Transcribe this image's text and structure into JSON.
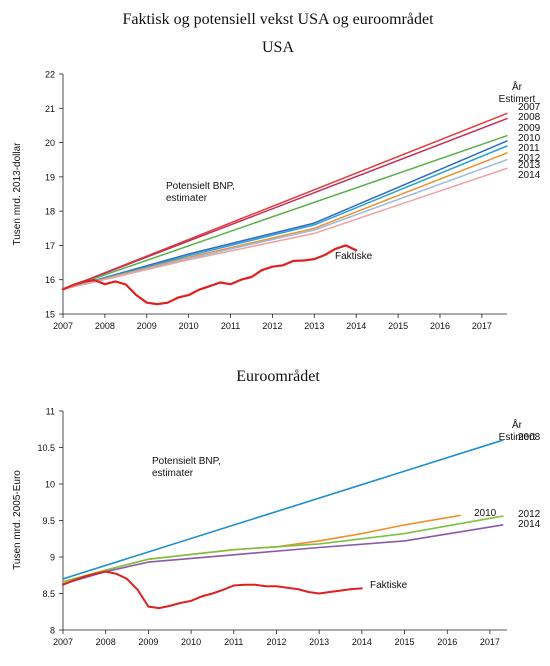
{
  "figure_title": "Faktisk og potensiell vekst USA og euroområdet",
  "chart_data": [
    {
      "type": "line",
      "title": "USA",
      "ylabel": "Tusen mrd. 2013-dollar",
      "xlabel": "",
      "xlim": [
        2007,
        2017.6
      ],
      "ylim": [
        15,
        22
      ],
      "x_ticks": [
        "2007",
        "2008",
        "2009",
        "2010",
        "2011",
        "2012",
        "2013",
        "2014",
        "2015",
        "2016",
        "2017"
      ],
      "y_ticks": [
        "15",
        "16",
        "17",
        "18",
        "19",
        "20",
        "21",
        "22"
      ],
      "legend_header": [
        "År",
        "Estimert"
      ],
      "annotation": [
        "Potensielt BNP,",
        "estimater"
      ],
      "series": [
        {
          "name": "2007",
          "color": "#e63a3a",
          "width": 1.5,
          "x": [
            2007,
            2017.6
          ],
          "y": [
            15.72,
            20.85
          ]
        },
        {
          "name": "2008",
          "color": "#c0305a",
          "width": 1.5,
          "x": [
            2007,
            2017.6
          ],
          "y": [
            15.72,
            20.7
          ]
        },
        {
          "name": "2009",
          "color": "#5ab04a",
          "width": 1.5,
          "x": [
            2007,
            2017.6
          ],
          "y": [
            15.72,
            20.2
          ]
        },
        {
          "name": "2010",
          "color": "#2f6bc2",
          "width": 1.5,
          "x": [
            2007,
            2010,
            2013,
            2017.6
          ],
          "y": [
            15.72,
            16.75,
            17.65,
            20.05
          ]
        },
        {
          "name": "2011",
          "color": "#2aa3d6",
          "width": 1.5,
          "x": [
            2007,
            2010,
            2013,
            2017.6
          ],
          "y": [
            15.72,
            16.7,
            17.6,
            19.9
          ]
        },
        {
          "name": "2012",
          "color": "#f0902a",
          "width": 1.5,
          "x": [
            2007,
            2010,
            2013,
            2017.6
          ],
          "y": [
            15.72,
            16.65,
            17.5,
            19.7
          ]
        },
        {
          "name": "2013",
          "color": "#9bbbe0",
          "width": 1.5,
          "x": [
            2007,
            2010,
            2013,
            2017.6
          ],
          "y": [
            15.72,
            16.62,
            17.45,
            19.5
          ]
        },
        {
          "name": "2014",
          "color": "#f0a0a0",
          "width": 1.5,
          "x": [
            2007,
            2010,
            2013,
            2017.6
          ],
          "y": [
            15.72,
            16.58,
            17.35,
            19.25
          ]
        },
        {
          "name": "Faktiske",
          "color": "#e02020",
          "width": 2.2,
          "x": [
            2007,
            2007.25,
            2007.5,
            2007.75,
            2008,
            2008.25,
            2008.5,
            2008.75,
            2009,
            2009.25,
            2009.5,
            2009.75,
            2010,
            2010.25,
            2010.5,
            2010.75,
            2011,
            2011.25,
            2011.5,
            2011.75,
            2012,
            2012.25,
            2012.5,
            2012.75,
            2013,
            2013.25,
            2013.5,
            2013.75,
            2014
          ],
          "y": [
            15.72,
            15.85,
            15.95,
            15.99,
            15.87,
            15.95,
            15.86,
            15.55,
            15.33,
            15.29,
            15.33,
            15.48,
            15.55,
            15.71,
            15.81,
            15.92,
            15.87,
            16.0,
            16.08,
            16.28,
            16.38,
            16.42,
            16.55,
            16.56,
            16.6,
            16.72,
            16.9,
            17.0,
            16.86
          ]
        }
      ]
    },
    {
      "type": "line",
      "title": "Euroområdet",
      "ylabel": "Tusen mrd. 2005-Euro",
      "xlabel": "",
      "xlim": [
        2007,
        2017.3
      ],
      "ylim": [
        8,
        11
      ],
      "x_ticks": [
        "2007",
        "2008",
        "2009",
        "2010",
        "2011",
        "2012",
        "2013",
        "2014",
        "2015",
        "2016",
        "2017"
      ],
      "y_ticks": [
        "8",
        "8.5",
        "9",
        "9.5",
        "10",
        "10.5",
        "11"
      ],
      "legend_header": [
        "År",
        "Estimert"
      ],
      "annotation": [
        "Potensielt BNP,",
        "estimater"
      ],
      "series": [
        {
          "name": "2008",
          "color": "#1f8fd0",
          "width": 1.6,
          "x": [
            2007,
            2017.3
          ],
          "y": [
            8.7,
            10.6
          ]
        },
        {
          "name": "2010",
          "color": "#f0902a",
          "width": 1.6,
          "x": [
            2007,
            2008,
            2009,
            2011,
            2012,
            2013,
            2014,
            2015,
            2016.3
          ],
          "y": [
            8.66,
            8.82,
            8.97,
            9.1,
            9.14,
            9.22,
            9.32,
            9.44,
            9.57
          ]
        },
        {
          "name": "2012",
          "color": "#7dc242",
          "width": 1.6,
          "x": [
            2007,
            2008,
            2009,
            2011,
            2013,
            2015,
            2017.3
          ],
          "y": [
            8.66,
            8.82,
            8.97,
            9.1,
            9.18,
            9.32,
            9.56
          ]
        },
        {
          "name": "2014",
          "color": "#8a5aa8",
          "width": 1.6,
          "x": [
            2007,
            2008,
            2009,
            2011,
            2013,
            2015,
            2017.3
          ],
          "y": [
            8.63,
            8.8,
            8.93,
            9.03,
            9.13,
            9.22,
            9.44
          ]
        },
        {
          "name": "Faktiske",
          "color": "#e02020",
          "width": 2.0,
          "x": [
            2007,
            2007.25,
            2007.5,
            2007.75,
            2008,
            2008.25,
            2008.5,
            2008.75,
            2009,
            2009.25,
            2009.5,
            2009.75,
            2010,
            2010.25,
            2010.5,
            2010.75,
            2011,
            2011.25,
            2011.5,
            2011.75,
            2012,
            2012.25,
            2012.5,
            2012.75,
            2013,
            2013.25,
            2013.5,
            2013.75,
            2014
          ],
          "y": [
            8.62,
            8.68,
            8.73,
            8.77,
            8.8,
            8.77,
            8.7,
            8.55,
            8.32,
            8.3,
            8.33,
            8.37,
            8.4,
            8.46,
            8.5,
            8.55,
            8.61,
            8.62,
            8.62,
            8.6,
            8.6,
            8.58,
            8.56,
            8.52,
            8.5,
            8.52,
            8.54,
            8.56,
            8.57
          ]
        }
      ]
    }
  ]
}
